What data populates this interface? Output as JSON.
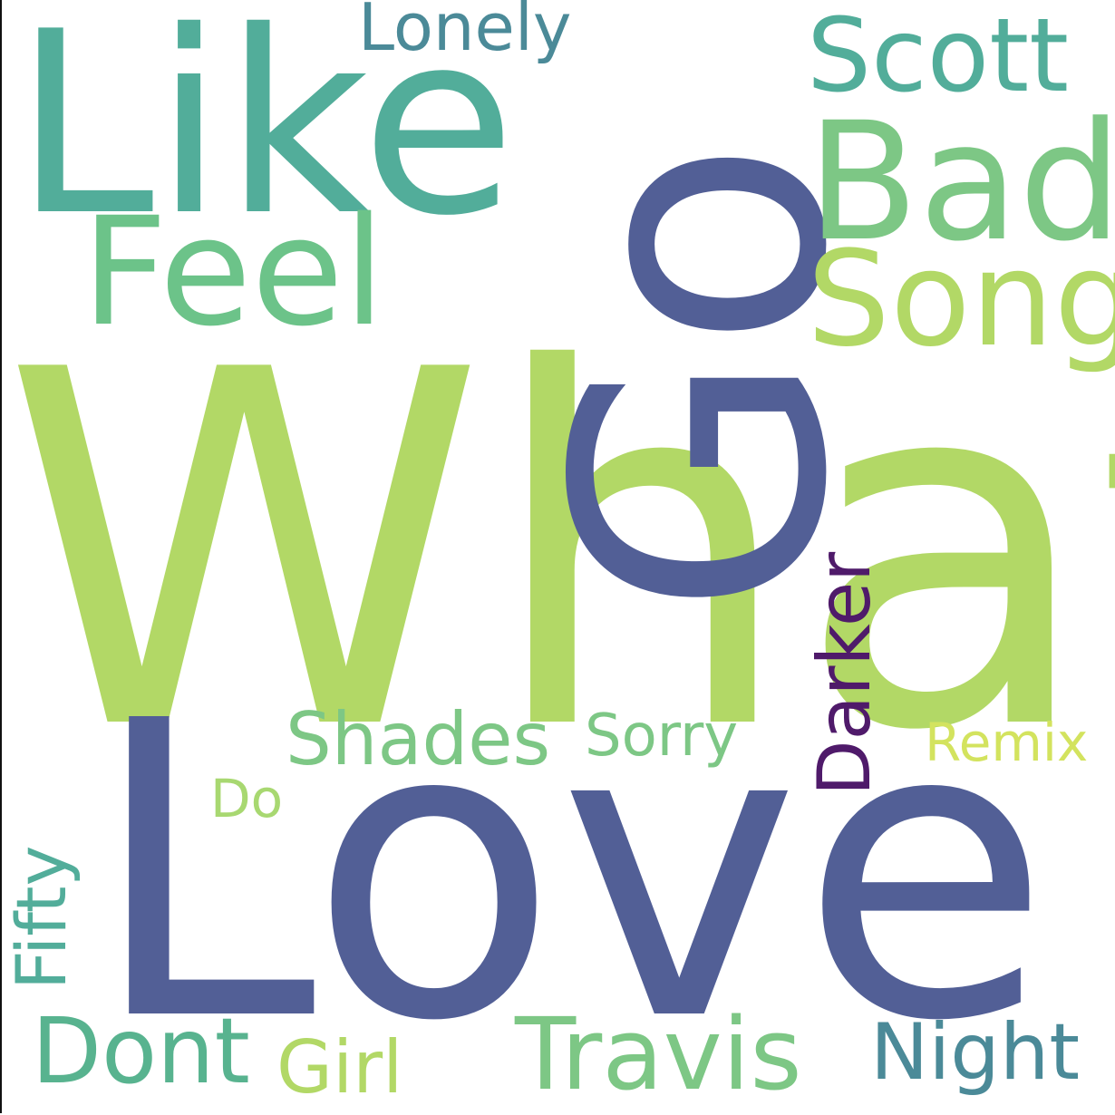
{
  "word_cloud": {
    "words": [
      {
        "key": "what",
        "text": "What",
        "color": "#b2d866"
      },
      {
        "key": "love",
        "text": "Love",
        "color": "#525f96"
      },
      {
        "key": "go",
        "text": "Go",
        "color": "#525f96"
      },
      {
        "key": "like",
        "text": "Like",
        "color": "#52ad9a"
      },
      {
        "key": "bad",
        "text": "Bad",
        "color": "#7dc785"
      },
      {
        "key": "feel",
        "text": "Feel",
        "color": "#6cc389"
      },
      {
        "key": "song",
        "text": "Song",
        "color": "#b2d866"
      },
      {
        "key": "scott",
        "text": "Scott",
        "color": "#52ad9a"
      },
      {
        "key": "lonely",
        "text": "Lonely",
        "color": "#4b8a98"
      },
      {
        "key": "darker",
        "text": "Darker",
        "color": "#4f1a6a"
      },
      {
        "key": "shades",
        "text": "Shades",
        "color": "#7dc785"
      },
      {
        "key": "sorry",
        "text": "Sorry",
        "color": "#7dc785"
      },
      {
        "key": "remix",
        "text": "Remix",
        "color": "#d3e35e"
      },
      {
        "key": "do",
        "text": "Do",
        "color": "#a8d871"
      },
      {
        "key": "fifty",
        "text": "Fifty",
        "color": "#52ad9a"
      },
      {
        "key": "dont",
        "text": "Dont",
        "color": "#58b38f"
      },
      {
        "key": "girl",
        "text": "Girl",
        "color": "#b2d866"
      },
      {
        "key": "travis",
        "text": "Travis",
        "color": "#7dc785"
      },
      {
        "key": "night",
        "text": "Night",
        "color": "#4b8a98"
      }
    ]
  }
}
